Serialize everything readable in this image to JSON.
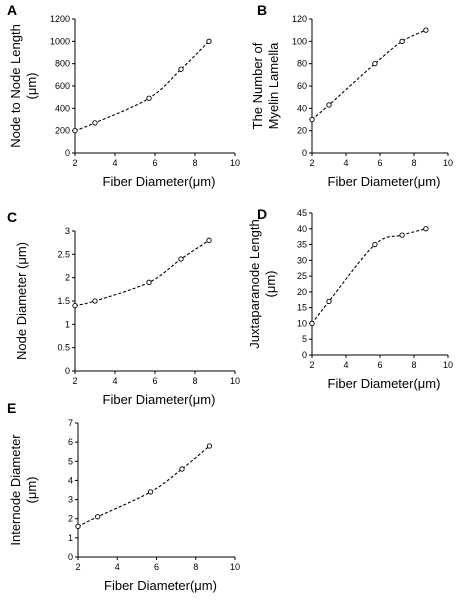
{
  "chart_data": [
    {
      "panel": "A",
      "type": "scatter",
      "xlabel": "Fiber Diameter(μm)",
      "ylabel": [
        "Node to Node Length",
        "(μm)"
      ],
      "xlim": [
        2,
        10
      ],
      "ylim": [
        0,
        1200
      ],
      "xticks": [
        2,
        4,
        6,
        8,
        10
      ],
      "yticks": [
        0,
        200,
        400,
        600,
        800,
        1000,
        1200
      ],
      "trendline": "dashed",
      "x": [
        2,
        3,
        5.7,
        7.3,
        8.7
      ],
      "y": [
        200,
        270,
        490,
        750,
        1000
      ],
      "grid": false
    },
    {
      "panel": "B",
      "type": "scatter",
      "xlabel": "Fiber Diameter(μm)",
      "ylabel": [
        "The Number of",
        "Myelin Lamella"
      ],
      "xlim": [
        2,
        10
      ],
      "ylim": [
        0,
        120
      ],
      "xticks": [
        2,
        4,
        6,
        8,
        10
      ],
      "yticks": [
        0,
        20,
        40,
        60,
        80,
        100,
        120
      ],
      "trendline": "dashed",
      "x": [
        2,
        3,
        5.7,
        7.3,
        8.7
      ],
      "y": [
        30,
        43,
        80,
        100,
        110
      ],
      "grid": false
    },
    {
      "panel": "C",
      "type": "scatter",
      "xlabel": "Fiber Diameter(μm)",
      "ylabel": [
        "Node Diameter (μm)"
      ],
      "xlim": [
        2,
        10
      ],
      "ylim": [
        0,
        3
      ],
      "xticks": [
        2,
        4,
        6,
        8,
        10
      ],
      "yticks": [
        0,
        0.5,
        1,
        1.5,
        2,
        2.5,
        3
      ],
      "trendline": "dashed",
      "x": [
        2,
        3,
        5.7,
        7.3,
        8.7
      ],
      "y": [
        1.4,
        1.5,
        1.9,
        2.4,
        2.8
      ],
      "grid": false
    },
    {
      "panel": "D",
      "type": "scatter",
      "xlabel": "Fiber Diameter(μm)",
      "ylabel": [
        "Juxtaparanode Length",
        "(μm)"
      ],
      "xlim": [
        2,
        10
      ],
      "ylim": [
        0,
        45
      ],
      "xticks": [
        2,
        4,
        6,
        8,
        10
      ],
      "yticks": [
        0,
        5,
        10,
        15,
        20,
        25,
        30,
        35,
        40,
        45
      ],
      "trendline": "dashed",
      "x": [
        2,
        3,
        5.7,
        7.3,
        8.7
      ],
      "y": [
        10,
        17,
        35,
        38,
        40
      ],
      "grid": false
    },
    {
      "panel": "E",
      "type": "scatter",
      "xlabel": "Fiber Diameter(μm)",
      "ylabel": [
        "Internode Diameter",
        "(μm)"
      ],
      "xlim": [
        2,
        10
      ],
      "ylim": [
        0,
        7
      ],
      "xticks": [
        2,
        4,
        6,
        8,
        10
      ],
      "yticks": [
        0,
        1,
        2,
        3,
        4,
        5,
        6,
        7
      ],
      "trendline": "dashed",
      "x": [
        2,
        3,
        5.7,
        7.3,
        8.7
      ],
      "y": [
        1.6,
        2.1,
        3.4,
        4.6,
        5.8
      ],
      "grid": false
    }
  ]
}
